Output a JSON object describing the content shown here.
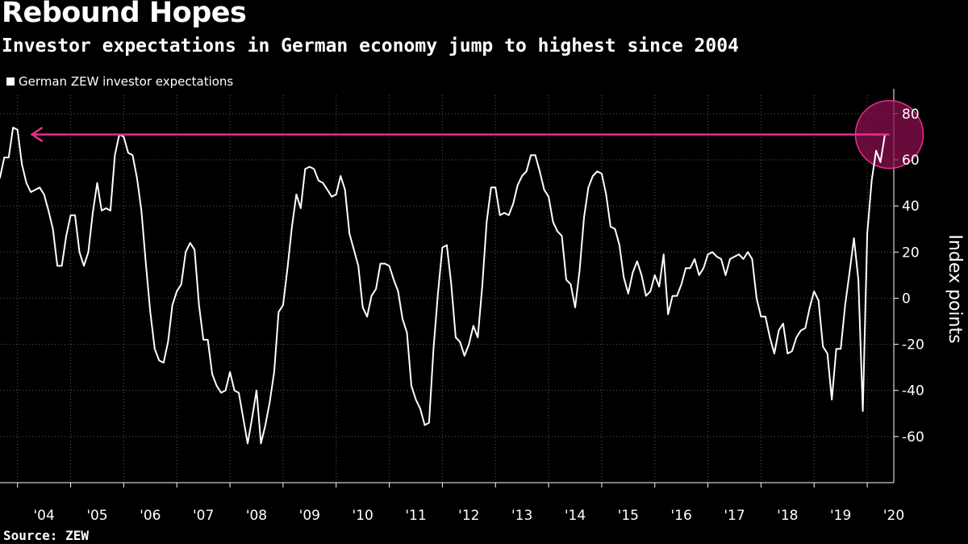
{
  "title": "Rebound Hopes",
  "subtitle": "Investor expectations in German economy jump to highest since 2004",
  "source": "Source: ZEW",
  "colors": {
    "background": "#000000",
    "line": "#ffffff",
    "annotation": "#e8308a",
    "highlight_fill": "#8a0f4f"
  },
  "chart_data": {
    "type": "line",
    "ylabel": "Index points",
    "ylim": [
      -80,
      88
    ],
    "yticks": [
      -60,
      -40,
      -20,
      0,
      20,
      40,
      60,
      80
    ],
    "ytick_labels": [
      "-60",
      "-40",
      "-20",
      "0",
      "20",
      "40",
      "60",
      "80"
    ],
    "y_axis_side": "right",
    "grid": true,
    "legend": "top-left",
    "x_start": 2003.67,
    "x_end": 2020.5,
    "xtick_labels": [
      "'04",
      "'05",
      "'06",
      "'07",
      "'08",
      "'09",
      "'10",
      "'11",
      "'12",
      "'13",
      "'14",
      "'15",
      "'16",
      "'17",
      "'18",
      "'19",
      "'20"
    ],
    "xtick_years": [
      2004,
      2005,
      2006,
      2007,
      2008,
      2009,
      2010,
      2011,
      2012,
      2013,
      2014,
      2015,
      2016,
      2017,
      2018,
      2019,
      2020
    ],
    "series": [
      {
        "name": "German ZEW investor expectations",
        "start": "2003-09",
        "frequency": "monthly",
        "values": [
          52,
          61,
          61,
          74,
          73,
          58,
          50,
          46,
          47,
          48,
          45,
          38,
          30,
          14,
          14,
          27,
          36,
          36,
          20,
          14,
          20,
          37,
          50,
          38,
          39,
          38,
          62,
          71,
          70,
          63,
          62,
          52,
          38,
          15,
          -6,
          -22,
          -27,
          -28,
          -19,
          -3,
          3,
          6,
          20,
          24,
          21,
          -3,
          -18,
          -18,
          -33,
          -38,
          -41,
          -40,
          -32,
          -40,
          -41,
          -52,
          -63,
          -52,
          -40,
          -63,
          -55,
          -45,
          -32,
          -6,
          -3,
          13,
          31,
          45,
          39,
          56,
          57,
          56,
          51,
          50,
          47,
          44,
          45,
          53,
          47,
          28,
          21,
          14,
          -4,
          -8,
          1,
          4,
          15,
          15,
          14,
          8,
          3,
          -9,
          -15,
          -38,
          -44,
          -48,
          -55,
          -54,
          -22,
          2,
          22,
          23,
          6,
          -17,
          -19,
          -25,
          -20,
          -12,
          -17,
          5,
          33,
          48,
          48,
          36,
          37,
          36,
          41,
          49,
          53,
          55,
          62,
          62,
          55,
          47,
          44,
          33,
          29,
          27,
          8,
          6,
          -4,
          12,
          35,
          48,
          53,
          55,
          54,
          45,
          31,
          30,
          23,
          9,
          2,
          11,
          16,
          10,
          1,
          3,
          10,
          5,
          19,
          -7,
          1,
          1,
          6,
          13,
          13,
          17,
          10,
          13,
          19,
          20,
          18,
          17,
          10,
          17,
          18,
          19,
          17,
          20,
          17,
          0,
          -8,
          -8,
          -17,
          -24,
          -14,
          -11,
          -24,
          -23,
          -17,
          -14,
          -13,
          -4,
          3,
          -1,
          -21,
          -24,
          -44,
          -22,
          -22,
          -3,
          11,
          26,
          8,
          -49,
          28,
          51,
          64,
          59,
          71
        ]
      }
    ],
    "annotations": {
      "reference_line_value": 71,
      "arrow_from_date": "2020-06",
      "arrow_to_date": "2004-01",
      "highlight_circle_date": "2020-06"
    }
  }
}
